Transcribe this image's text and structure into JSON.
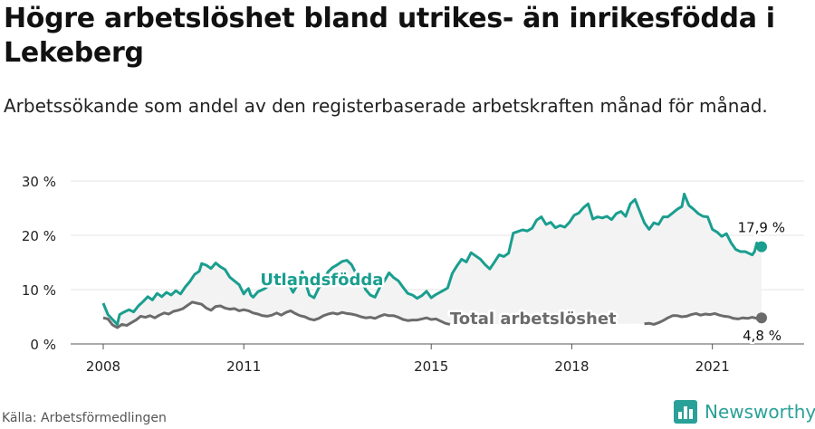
{
  "header": {
    "title": "Högre arbetslöshet bland utrikes- än inrikesfödda i Lekeberg",
    "subtitle": "Arbetssökande som andel av den registerbaserade arbetskraften månad för månad."
  },
  "footer": {
    "source": "Källa: Arbetsförmedlingen",
    "brand": "Newsworthy"
  },
  "colors": {
    "utlandsfodda": "#1a9e8f",
    "total": "#6b6b6b",
    "band": "#f3f3f3",
    "grid": "#e4e4e4"
  },
  "chart_data": {
    "type": "line",
    "x_ticks": [
      "2008",
      "2011",
      "2015",
      "2018",
      "2021"
    ],
    "x_tick_values": [
      2008,
      2011,
      2015,
      2018,
      2021
    ],
    "y_ticks": [
      "0 %",
      "10 %",
      "20 %",
      "30 %"
    ],
    "y_tick_values": [
      0,
      10,
      20,
      30
    ],
    "ylim": [
      0,
      30
    ],
    "xlim": [
      2007.3,
      2022.8
    ],
    "grid": true,
    "series": [
      {
        "name": "Utlandsfödda",
        "label_x": 2011.35,
        "label_y": 10.8,
        "end_label": "17,9 %",
        "points": [
          [
            2008.0,
            7.5
          ],
          [
            2008.1,
            5.4
          ],
          [
            2008.2,
            4.5
          ],
          [
            2008.3,
            3.6
          ],
          [
            2008.35,
            5.4
          ],
          [
            2008.45,
            5.9
          ],
          [
            2008.55,
            6.3
          ],
          [
            2008.65,
            5.9
          ],
          [
            2008.75,
            7.0
          ],
          [
            2008.85,
            7.8
          ],
          [
            2008.95,
            8.7
          ],
          [
            2009.05,
            8.1
          ],
          [
            2009.15,
            9.3
          ],
          [
            2009.25,
            8.7
          ],
          [
            2009.35,
            9.5
          ],
          [
            2009.45,
            9.0
          ],
          [
            2009.55,
            9.8
          ],
          [
            2009.65,
            9.2
          ],
          [
            2009.75,
            10.5
          ],
          [
            2009.85,
            11.5
          ],
          [
            2009.95,
            12.8
          ],
          [
            2010.05,
            13.4
          ],
          [
            2010.1,
            14.8
          ],
          [
            2010.2,
            14.5
          ],
          [
            2010.3,
            13.9
          ],
          [
            2010.4,
            14.9
          ],
          [
            2010.5,
            14.2
          ],
          [
            2010.6,
            13.7
          ],
          [
            2010.7,
            12.3
          ],
          [
            2010.8,
            11.6
          ],
          [
            2010.9,
            10.9
          ],
          [
            2011.0,
            9.2
          ],
          [
            2011.05,
            9.8
          ],
          [
            2011.1,
            10.2
          ],
          [
            2011.15,
            9.0
          ],
          [
            2011.2,
            8.6
          ],
          [
            2011.3,
            9.6
          ],
          [
            2011.45,
            10.2
          ],
          [
            2011.6,
            11.2
          ],
          [
            2011.75,
            11.8
          ],
          [
            2011.85,
            12.6
          ],
          [
            2011.95,
            11.2
          ],
          [
            2012.05,
            9.5
          ],
          [
            2012.15,
            11.0
          ],
          [
            2012.25,
            13.3
          ],
          [
            2012.3,
            11.7
          ],
          [
            2012.4,
            9.0
          ],
          [
            2012.5,
            8.5
          ],
          [
            2012.6,
            10.3
          ],
          [
            2012.7,
            11.8
          ],
          [
            2012.8,
            13.3
          ],
          [
            2012.9,
            14.1
          ],
          [
            2013.0,
            14.6
          ],
          [
            2013.1,
            15.2
          ],
          [
            2013.2,
            15.4
          ],
          [
            2013.3,
            14.6
          ],
          [
            2013.4,
            12.9
          ],
          [
            2013.5,
            12.0
          ],
          [
            2013.6,
            10.0
          ],
          [
            2013.7,
            9.0
          ],
          [
            2013.8,
            8.6
          ],
          [
            2013.9,
            10.4
          ],
          [
            2014.0,
            11.6
          ],
          [
            2014.1,
            13.1
          ],
          [
            2014.2,
            12.2
          ],
          [
            2014.3,
            11.6
          ],
          [
            2014.4,
            10.4
          ],
          [
            2014.5,
            9.3
          ],
          [
            2014.6,
            9.0
          ],
          [
            2014.7,
            8.4
          ],
          [
            2014.8,
            8.9
          ],
          [
            2014.9,
            9.7
          ],
          [
            2015.0,
            8.5
          ],
          [
            2015.1,
            9.1
          ],
          [
            2015.25,
            9.8
          ],
          [
            2015.35,
            10.3
          ],
          [
            2015.45,
            13.0
          ],
          [
            2015.55,
            14.4
          ],
          [
            2015.65,
            15.6
          ],
          [
            2015.75,
            15.1
          ],
          [
            2015.85,
            16.8
          ],
          [
            2015.95,
            16.2
          ],
          [
            2016.05,
            15.6
          ],
          [
            2016.15,
            14.6
          ],
          [
            2016.25,
            13.8
          ],
          [
            2016.35,
            15.1
          ],
          [
            2016.45,
            16.4
          ],
          [
            2016.55,
            16.1
          ],
          [
            2016.65,
            16.7
          ],
          [
            2016.75,
            20.4
          ],
          [
            2016.85,
            20.7
          ],
          [
            2016.95,
            21.0
          ],
          [
            2017.05,
            20.8
          ],
          [
            2017.15,
            21.3
          ],
          [
            2017.25,
            22.8
          ],
          [
            2017.35,
            23.4
          ],
          [
            2017.45,
            22.0
          ],
          [
            2017.55,
            22.4
          ],
          [
            2017.65,
            21.4
          ],
          [
            2017.75,
            21.8
          ],
          [
            2017.85,
            21.5
          ],
          [
            2017.95,
            22.4
          ],
          [
            2018.05,
            23.7
          ],
          [
            2018.15,
            24.1
          ],
          [
            2018.25,
            25.1
          ],
          [
            2018.35,
            25.8
          ],
          [
            2018.45,
            23.0
          ],
          [
            2018.55,
            23.4
          ],
          [
            2018.65,
            23.2
          ],
          [
            2018.75,
            23.5
          ],
          [
            2018.85,
            22.9
          ],
          [
            2018.95,
            24.0
          ],
          [
            2019.05,
            24.4
          ],
          [
            2019.15,
            23.5
          ],
          [
            2019.25,
            25.8
          ],
          [
            2019.35,
            26.6
          ],
          [
            2019.45,
            24.4
          ],
          [
            2019.55,
            22.3
          ],
          [
            2019.65,
            21.1
          ],
          [
            2019.75,
            22.3
          ],
          [
            2019.85,
            22.0
          ],
          [
            2019.95,
            23.4
          ],
          [
            2020.05,
            23.4
          ],
          [
            2020.15,
            24.1
          ],
          [
            2020.25,
            24.8
          ],
          [
            2020.35,
            25.3
          ],
          [
            2020.4,
            27.6
          ],
          [
            2020.5,
            25.5
          ],
          [
            2020.6,
            24.8
          ],
          [
            2020.7,
            24.0
          ],
          [
            2020.8,
            23.5
          ],
          [
            2020.9,
            23.4
          ],
          [
            2021.0,
            21.1
          ],
          [
            2021.1,
            20.6
          ],
          [
            2021.2,
            19.8
          ],
          [
            2021.3,
            20.3
          ],
          [
            2021.4,
            18.6
          ],
          [
            2021.5,
            17.4
          ],
          [
            2021.6,
            17.0
          ],
          [
            2021.7,
            17.0
          ],
          [
            2021.8,
            16.6
          ],
          [
            2021.85,
            16.4
          ],
          [
            2021.9,
            17.0
          ],
          [
            2021.95,
            18.6
          ],
          [
            2022.0,
            17.9
          ],
          [
            2022.05,
            17.9
          ]
        ]
      },
      {
        "name": "Total arbetslöshet",
        "label_x": 2015.4,
        "label_y": 3.7,
        "end_label": "4,8 %",
        "points": [
          [
            2008.0,
            4.8
          ],
          [
            2008.1,
            4.6
          ],
          [
            2008.2,
            3.5
          ],
          [
            2008.3,
            3.0
          ],
          [
            2008.4,
            3.6
          ],
          [
            2008.5,
            3.4
          ],
          [
            2008.6,
            3.9
          ],
          [
            2008.7,
            4.4
          ],
          [
            2008.8,
            5.1
          ],
          [
            2008.9,
            4.9
          ],
          [
            2009.0,
            5.2
          ],
          [
            2009.1,
            4.8
          ],
          [
            2009.2,
            5.3
          ],
          [
            2009.3,
            5.7
          ],
          [
            2009.4,
            5.5
          ],
          [
            2009.5,
            6.0
          ],
          [
            2009.6,
            6.2
          ],
          [
            2009.7,
            6.5
          ],
          [
            2009.8,
            7.1
          ],
          [
            2009.9,
            7.7
          ],
          [
            2010.0,
            7.5
          ],
          [
            2010.1,
            7.3
          ],
          [
            2010.2,
            6.6
          ],
          [
            2010.3,
            6.2
          ],
          [
            2010.4,
            6.9
          ],
          [
            2010.5,
            7.0
          ],
          [
            2010.6,
            6.6
          ],
          [
            2010.7,
            6.4
          ],
          [
            2010.8,
            6.5
          ],
          [
            2010.9,
            6.1
          ],
          [
            2011.0,
            6.3
          ],
          [
            2011.1,
            6.1
          ],
          [
            2011.2,
            5.7
          ],
          [
            2011.3,
            5.5
          ],
          [
            2011.4,
            5.2
          ],
          [
            2011.5,
            5.1
          ],
          [
            2011.6,
            5.3
          ],
          [
            2011.7,
            5.7
          ],
          [
            2011.8,
            5.3
          ],
          [
            2011.9,
            5.8
          ],
          [
            2012.0,
            6.1
          ],
          [
            2012.1,
            5.6
          ],
          [
            2012.2,
            5.2
          ],
          [
            2012.3,
            5.0
          ],
          [
            2012.4,
            4.6
          ],
          [
            2012.5,
            4.4
          ],
          [
            2012.6,
            4.7
          ],
          [
            2012.7,
            5.2
          ],
          [
            2012.8,
            5.5
          ],
          [
            2012.9,
            5.7
          ],
          [
            2013.0,
            5.5
          ],
          [
            2013.1,
            5.8
          ],
          [
            2013.2,
            5.6
          ],
          [
            2013.3,
            5.5
          ],
          [
            2013.4,
            5.3
          ],
          [
            2013.5,
            5.0
          ],
          [
            2013.6,
            4.8
          ],
          [
            2013.7,
            4.9
          ],
          [
            2013.8,
            4.7
          ],
          [
            2013.9,
            5.1
          ],
          [
            2014.0,
            5.4
          ],
          [
            2014.1,
            5.2
          ],
          [
            2014.2,
            5.2
          ],
          [
            2014.3,
            4.9
          ],
          [
            2014.4,
            4.5
          ],
          [
            2014.5,
            4.3
          ],
          [
            2014.6,
            4.4
          ],
          [
            2014.7,
            4.4
          ],
          [
            2014.8,
            4.6
          ],
          [
            2014.9,
            4.8
          ],
          [
            2015.0,
            4.5
          ],
          [
            2015.1,
            4.6
          ],
          [
            2015.2,
            4.2
          ],
          [
            2015.3,
            3.8
          ],
          [
            2015.4,
            3.6
          ]
        ],
        "points_2": [
          [
            2019.55,
            3.7
          ],
          [
            2019.65,
            3.8
          ],
          [
            2019.75,
            3.6
          ],
          [
            2019.85,
            3.9
          ],
          [
            2019.95,
            4.3
          ],
          [
            2020.05,
            4.8
          ],
          [
            2020.15,
            5.2
          ],
          [
            2020.25,
            5.2
          ],
          [
            2020.35,
            5.0
          ],
          [
            2020.45,
            5.1
          ],
          [
            2020.55,
            5.4
          ],
          [
            2020.65,
            5.6
          ],
          [
            2020.75,
            5.3
          ],
          [
            2020.85,
            5.5
          ],
          [
            2020.95,
            5.4
          ],
          [
            2021.05,
            5.6
          ],
          [
            2021.15,
            5.3
          ],
          [
            2021.25,
            5.1
          ],
          [
            2021.35,
            5.0
          ],
          [
            2021.45,
            4.7
          ],
          [
            2021.55,
            4.6
          ],
          [
            2021.65,
            4.8
          ],
          [
            2021.75,
            4.7
          ],
          [
            2021.85,
            4.9
          ],
          [
            2021.95,
            4.7
          ],
          [
            2022.05,
            4.8
          ]
        ]
      }
    ]
  }
}
